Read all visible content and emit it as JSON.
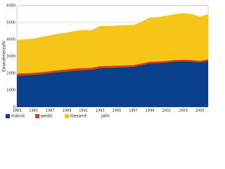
{
  "chart_data": {
    "type": "area",
    "y_label": "Einwohnerzahl",
    "x_label": "Jahr",
    "x": [
      1983,
      1984,
      1985,
      1986,
      1987,
      1988,
      1989,
      1990,
      1991,
      1992,
      1993,
      1994,
      1995,
      1996,
      1997,
      1998,
      1999,
      2000,
      2001,
      2002,
      2003,
      2004,
      2005,
      2006
    ],
    "xlim": [
      1983,
      2006
    ],
    "xticks": [
      1983,
      1985,
      1987,
      1989,
      1991,
      1993,
      1995,
      1997,
      1999,
      2001,
      2003,
      2005
    ],
    "ylim": [
      0,
      6000
    ],
    "yticks": [
      0,
      1000,
      2000,
      3000,
      4000,
      5000,
      6000
    ],
    "grid": true,
    "series": [
      {
        "name": "Gesamt",
        "color": "#f5c518",
        "values": [
          3950,
          4000,
          4050,
          4150,
          4250,
          4350,
          4400,
          4500,
          4550,
          4550,
          4800,
          4800,
          4820,
          4850,
          4850,
          5050,
          5300,
          5320,
          5400,
          5500,
          5550,
          5500,
          5350,
          5500
        ]
      },
      {
        "name": "weibl.",
        "color": "#d9411e",
        "values": [
          1980,
          2000,
          2020,
          2060,
          2120,
          2180,
          2230,
          2280,
          2300,
          2320,
          2420,
          2430,
          2450,
          2460,
          2480,
          2580,
          2680,
          2700,
          2730,
          2780,
          2800,
          2780,
          2730,
          2820
        ]
      },
      {
        "name": "männl.",
        "color": "#08408c",
        "values": [
          1850,
          1870,
          1900,
          1950,
          2000,
          2060,
          2100,
          2150,
          2180,
          2200,
          2300,
          2310,
          2330,
          2350,
          2380,
          2480,
          2580,
          2600,
          2630,
          2680,
          2700,
          2680,
          2630,
          2720
        ]
      }
    ],
    "legend_order": [
      2,
      1,
      0
    ]
  }
}
